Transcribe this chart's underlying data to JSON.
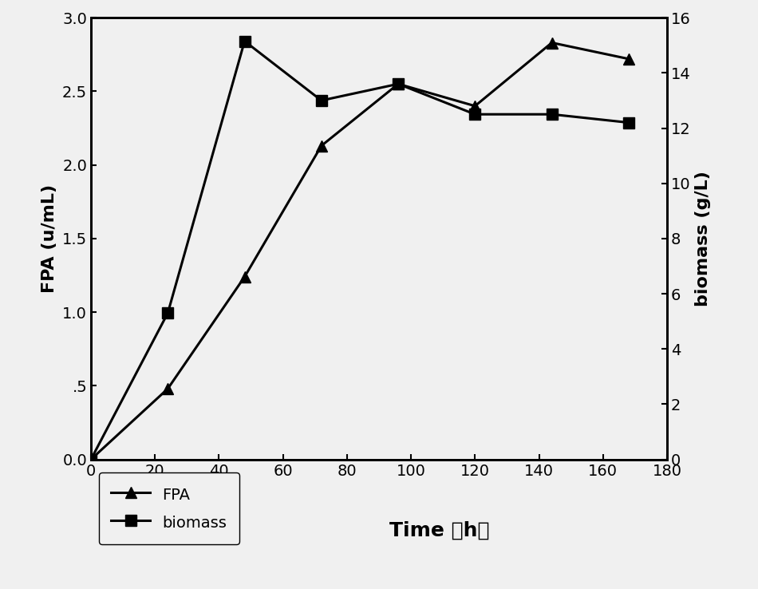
{
  "fpa_time": [
    0,
    24,
    48,
    72,
    96,
    120,
    144,
    168
  ],
  "fpa_values": [
    0.0,
    0.48,
    1.24,
    2.13,
    2.55,
    2.4,
    2.83,
    2.72
  ],
  "biomass_time": [
    0,
    24,
    48,
    72,
    96,
    120,
    144,
    168
  ],
  "biomass_values": [
    0.0,
    5.3,
    15.15,
    13.0,
    13.6,
    12.5,
    12.5,
    12.2
  ],
  "fpa_color": "#000000",
  "biomass_color": "#000000",
  "xlabel": "Time （h）",
  "ylabel_left": "FPA (u/mL)",
  "ylabel_right": "biomass (g/L)",
  "xlim": [
    0,
    180
  ],
  "ylim_left": [
    0.0,
    3.0
  ],
  "ylim_right": [
    0,
    16
  ],
  "xticks": [
    0,
    20,
    40,
    60,
    80,
    100,
    120,
    140,
    160,
    180
  ],
  "yticks_left": [
    0.0,
    0.5,
    1.0,
    1.5,
    2.0,
    2.5,
    3.0
  ],
  "ytick_labels_left": [
    "0.0",
    ".5",
    "1.0",
    "1.5",
    "2.0",
    "2.5",
    "3.0"
  ],
  "yticks_right": [
    0,
    2,
    4,
    6,
    8,
    10,
    12,
    14,
    16
  ],
  "legend_labels": [
    "FPA",
    "biomass"
  ],
  "background_color": "#f0f0f0",
  "linewidth": 2.2,
  "markersize": 10,
  "tick_fontsize": 14,
  "label_fontsize": 16,
  "legend_fontsize": 14
}
